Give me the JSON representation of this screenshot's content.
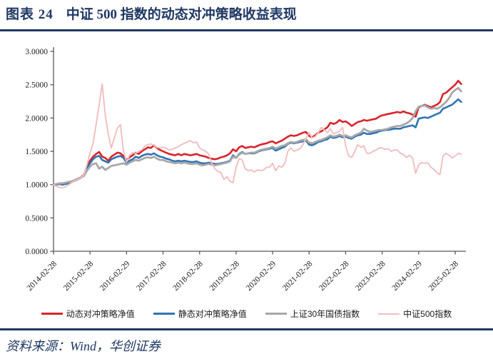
{
  "header": {
    "figure_label": "图表 24",
    "figure_title": "中证 500 指数的动态对冲策略收益表现"
  },
  "footer": {
    "source_text": "资料来源：Wind，华创证券"
  },
  "colors": {
    "accent_navy": "#1F3864",
    "axis": "#595959",
    "series_dynamic_red": "#D9242B",
    "series_static_blue": "#2E75B6",
    "series_bond_gray": "#A8A8A8",
    "series_csi500_pink": "#F1BEC0"
  },
  "chart_data": {
    "type": "line",
    "title": "中证500指数的动态对冲策略收益表现",
    "xlabel": "",
    "ylabel": "",
    "ylim": [
      0,
      3
    ],
    "ytick_step": 0.5,
    "ytick_labels": [
      "0.0000",
      "0.5000",
      "1.0000",
      "1.5000",
      "2.0000",
      "2.5000",
      "3.0000"
    ],
    "x_tick_labels": [
      "2014-02-28",
      "2015-02-28",
      "2016-02-29",
      "2017-02-28",
      "2018-02-28",
      "2019-02-28",
      "2020-02-29",
      "2021-02-28",
      "2022-02-28",
      "2023-02-28",
      "2024-02-29",
      "2025-02-28"
    ],
    "x_tick_indices": [
      0,
      12,
      24,
      36,
      48,
      60,
      72,
      84,
      96,
      108,
      120,
      132
    ],
    "x_unit": "months from 2014-02 to 2025-04",
    "grid": false,
    "legend_position": "bottom",
    "series": [
      {
        "name": "动态对冲策略净值",
        "color": "#D9242B",
        "values": [
          1.0,
          1.0,
          1.01,
          1.0,
          1.02,
          1.03,
          1.04,
          1.06,
          1.08,
          1.11,
          1.15,
          1.27,
          1.36,
          1.42,
          1.46,
          1.49,
          1.42,
          1.4,
          1.36,
          1.42,
          1.45,
          1.48,
          1.47,
          1.43,
          1.37,
          1.41,
          1.44,
          1.48,
          1.46,
          1.5,
          1.53,
          1.56,
          1.55,
          1.59,
          1.55,
          1.52,
          1.5,
          1.48,
          1.46,
          1.45,
          1.44,
          1.46,
          1.44,
          1.46,
          1.45,
          1.44,
          1.45,
          1.46,
          1.44,
          1.43,
          1.42,
          1.4,
          1.39,
          1.38,
          1.39,
          1.41,
          1.42,
          1.44,
          1.47,
          1.53,
          1.5,
          1.56,
          1.58,
          1.55,
          1.56,
          1.57,
          1.56,
          1.58,
          1.6,
          1.61,
          1.62,
          1.64,
          1.65,
          1.62,
          1.64,
          1.66,
          1.69,
          1.72,
          1.74,
          1.73,
          1.74,
          1.76,
          1.78,
          1.79,
          1.73,
          1.71,
          1.74,
          1.78,
          1.8,
          1.83,
          1.86,
          1.93,
          1.91,
          1.93,
          1.97,
          1.94,
          1.95,
          1.92,
          1.88,
          1.91,
          1.94,
          1.95,
          1.97,
          1.96,
          1.97,
          1.98,
          1.99,
          2.02,
          2.04,
          2.05,
          2.06,
          2.07,
          2.08,
          2.09,
          2.08,
          2.1,
          2.08,
          2.07,
          2.05,
          2.02,
          2.16,
          2.18,
          2.2,
          2.18,
          2.16,
          2.18,
          2.2,
          2.24,
          2.36,
          2.38,
          2.42,
          2.46,
          2.5,
          2.56,
          2.51
        ]
      },
      {
        "name": "静态对冲策略净值",
        "color": "#2E75B6",
        "values": [
          1.0,
          1.0,
          1.01,
          1.0,
          1.01,
          1.02,
          1.04,
          1.06,
          1.08,
          1.1,
          1.14,
          1.24,
          1.32,
          1.38,
          1.42,
          1.43,
          1.37,
          1.35,
          1.33,
          1.38,
          1.4,
          1.42,
          1.43,
          1.4,
          1.33,
          1.36,
          1.38,
          1.42,
          1.4,
          1.43,
          1.45,
          1.46,
          1.45,
          1.47,
          1.44,
          1.42,
          1.41,
          1.39,
          1.38,
          1.36,
          1.35,
          1.36,
          1.35,
          1.36,
          1.35,
          1.34,
          1.34,
          1.35,
          1.33,
          1.32,
          1.32,
          1.33,
          1.32,
          1.31,
          1.31,
          1.32,
          1.33,
          1.34,
          1.36,
          1.44,
          1.4,
          1.46,
          1.49,
          1.46,
          1.47,
          1.47,
          1.47,
          1.49,
          1.51,
          1.52,
          1.53,
          1.54,
          1.55,
          1.51,
          1.53,
          1.55,
          1.57,
          1.61,
          1.63,
          1.62,
          1.63,
          1.64,
          1.65,
          1.66,
          1.6,
          1.59,
          1.61,
          1.64,
          1.65,
          1.67,
          1.68,
          1.72,
          1.7,
          1.71,
          1.73,
          1.71,
          1.72,
          1.7,
          1.69,
          1.72,
          1.74,
          1.75,
          1.78,
          1.76,
          1.76,
          1.77,
          1.78,
          1.8,
          1.81,
          1.82,
          1.82,
          1.83,
          1.84,
          1.84,
          1.84,
          1.86,
          1.87,
          1.88,
          1.89,
          1.86,
          1.99,
          2.0,
          2.01,
          2.0,
          2.02,
          2.04,
          2.06,
          2.08,
          2.14,
          2.16,
          2.18,
          2.2,
          2.24,
          2.28,
          2.24
        ]
      },
      {
        "name": "上证30年国债指数",
        "color": "#A8A8A8",
        "values": [
          1.0,
          1.01,
          1.02,
          1.02,
          1.03,
          1.04,
          1.05,
          1.07,
          1.09,
          1.11,
          1.13,
          1.21,
          1.27,
          1.31,
          1.32,
          1.24,
          1.27,
          1.22,
          1.25,
          1.28,
          1.29,
          1.3,
          1.31,
          1.32,
          1.3,
          1.33,
          1.35,
          1.37,
          1.36,
          1.38,
          1.4,
          1.41,
          1.4,
          1.42,
          1.39,
          1.37,
          1.37,
          1.35,
          1.34,
          1.33,
          1.32,
          1.33,
          1.32,
          1.33,
          1.32,
          1.31,
          1.31,
          1.32,
          1.3,
          1.29,
          1.3,
          1.31,
          1.3,
          1.29,
          1.3,
          1.31,
          1.32,
          1.33,
          1.35,
          1.42,
          1.4,
          1.45,
          1.48,
          1.46,
          1.47,
          1.48,
          1.48,
          1.5,
          1.52,
          1.53,
          1.54,
          1.55,
          1.57,
          1.54,
          1.56,
          1.58,
          1.59,
          1.62,
          1.64,
          1.63,
          1.64,
          1.66,
          1.67,
          1.68,
          1.63,
          1.62,
          1.64,
          1.66,
          1.67,
          1.69,
          1.71,
          1.74,
          1.72,
          1.73,
          1.75,
          1.73,
          1.74,
          1.72,
          1.71,
          1.74,
          1.76,
          1.78,
          1.84,
          1.81,
          1.79,
          1.8,
          1.81,
          1.82,
          1.82,
          1.83,
          1.84,
          1.86,
          1.87,
          1.88,
          1.88,
          1.9,
          1.92,
          1.95,
          2.0,
          2.1,
          2.17,
          2.18,
          2.19,
          2.16,
          2.14,
          2.15,
          2.14,
          2.16,
          2.2,
          2.24,
          2.3,
          2.38,
          2.42,
          2.45,
          2.4
        ]
      },
      {
        "name": "中证500指数",
        "color": "#F1BEC0",
        "values": [
          1.0,
          0.97,
          0.96,
          0.95,
          0.97,
          1.0,
          1.03,
          1.06,
          1.08,
          1.1,
          1.15,
          1.3,
          1.47,
          1.62,
          1.9,
          2.2,
          2.51,
          2.05,
          1.75,
          1.55,
          1.7,
          1.85,
          1.9,
          1.5,
          1.34,
          1.44,
          1.48,
          1.47,
          1.5,
          1.52,
          1.58,
          1.6,
          1.61,
          1.59,
          1.56,
          1.55,
          1.56,
          1.55,
          1.52,
          1.53,
          1.55,
          1.57,
          1.6,
          1.62,
          1.64,
          1.66,
          1.63,
          1.64,
          1.55,
          1.52,
          1.5,
          1.46,
          1.32,
          1.24,
          1.2,
          1.18,
          1.08,
          1.12,
          1.05,
          1.03,
          1.26,
          1.39,
          1.37,
          1.24,
          1.21,
          1.22,
          1.19,
          1.22,
          1.21,
          1.22,
          1.26,
          1.26,
          1.32,
          1.21,
          1.28,
          1.26,
          1.32,
          1.5,
          1.55,
          1.5,
          1.52,
          1.54,
          1.6,
          1.7,
          1.78,
          1.7,
          1.72,
          1.78,
          1.86,
          1.82,
          1.78,
          1.84,
          1.76,
          1.78,
          1.8,
          1.86,
          1.58,
          1.43,
          1.41,
          1.5,
          1.6,
          1.56,
          1.58,
          1.47,
          1.47,
          1.5,
          1.52,
          1.55,
          1.55,
          1.53,
          1.54,
          1.5,
          1.52,
          1.52,
          1.47,
          1.45,
          1.41,
          1.44,
          1.4,
          1.17,
          1.3,
          1.33,
          1.32,
          1.33,
          1.26,
          1.23,
          1.18,
          1.15,
          1.43,
          1.47,
          1.44,
          1.4,
          1.43,
          1.47,
          1.46
        ]
      }
    ]
  }
}
